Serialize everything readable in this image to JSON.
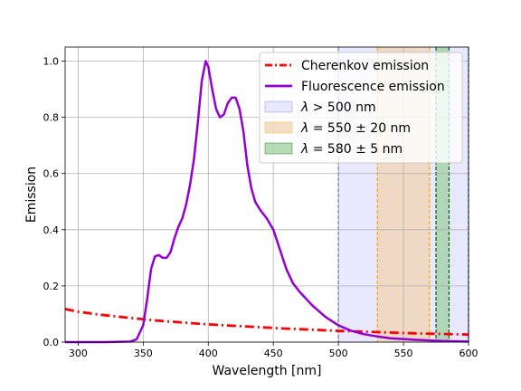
{
  "chart_data": {
    "type": "line",
    "xlabel": "Wavelength [nm]",
    "ylabel": "Emission",
    "xlim": [
      290,
      600
    ],
    "ylim": [
      0.0,
      1.05
    ],
    "grid": true,
    "legend_placement": "top-right",
    "xticks": [
      300,
      350,
      400,
      450,
      500,
      550,
      600
    ],
    "yticks": [
      0.0,
      0.2,
      0.4,
      0.6,
      0.8,
      1.0
    ],
    "xtick_labels": [
      "300",
      "350",
      "400",
      "450",
      "500",
      "550",
      "600"
    ],
    "ytick_labels": [
      "0.0",
      "0.2",
      "0.4",
      "0.6",
      "0.8",
      "1.0"
    ],
    "series": [
      {
        "name": "Cherenkov emission",
        "color": "#ff0000",
        "style": "dash-dot",
        "x": [
          290,
          300,
          320,
          340,
          360,
          380,
          400,
          420,
          440,
          460,
          480,
          500,
          520,
          540,
          560,
          580,
          600
        ],
        "y": [
          0.118,
          0.108,
          0.096,
          0.086,
          0.077,
          0.07,
          0.063,
          0.058,
          0.053,
          0.048,
          0.044,
          0.04,
          0.037,
          0.034,
          0.031,
          0.029,
          0.027
        ]
      },
      {
        "name": "Fluorescence emission",
        "color": "#9400d3",
        "style": "solid",
        "x": [
          290,
          320,
          340,
          345,
          350,
          353,
          356,
          359,
          362,
          365,
          368,
          371,
          374,
          377,
          380,
          383,
          386,
          389,
          392,
          395,
          398,
          400,
          403,
          406,
          409,
          412,
          415,
          418,
          421,
          424,
          427,
          430,
          433,
          436,
          440,
          445,
          450,
          455,
          460,
          465,
          470,
          480,
          490,
          500,
          510,
          520,
          530,
          540,
          560,
          580,
          600
        ],
        "y": [
          0.0,
          0.0,
          0.002,
          0.01,
          0.06,
          0.15,
          0.26,
          0.305,
          0.31,
          0.3,
          0.3,
          0.32,
          0.37,
          0.41,
          0.44,
          0.49,
          0.56,
          0.65,
          0.78,
          0.93,
          1.0,
          0.98,
          0.9,
          0.83,
          0.8,
          0.81,
          0.85,
          0.87,
          0.87,
          0.83,
          0.75,
          0.63,
          0.55,
          0.5,
          0.47,
          0.44,
          0.4,
          0.33,
          0.26,
          0.21,
          0.18,
          0.13,
          0.09,
          0.06,
          0.04,
          0.028,
          0.02,
          0.014,
          0.008,
          0.004,
          0.002
        ]
      }
    ],
    "bands": [
      {
        "name": "λ > 500 nm",
        "label_symbol": "λ",
        "label_rest": " > 500 nm",
        "from": 500,
        "to": 600,
        "fill": "#e6e6ff",
        "edge": "#0000cc"
      },
      {
        "name": "λ = 550 ± 20 nm",
        "label_symbol": "λ",
        "label_rest": " = 550 ± 20 nm",
        "from": 530,
        "to": 570,
        "fill": "#f2d4b0",
        "edge": "#ffa500"
      },
      {
        "name": "λ = 580 ± 5 nm",
        "label_symbol": "λ",
        "label_rest": " = 580 ± 5 nm",
        "from": 575,
        "to": 585,
        "fill": "#9fcf9f",
        "edge": "#006400"
      }
    ]
  }
}
